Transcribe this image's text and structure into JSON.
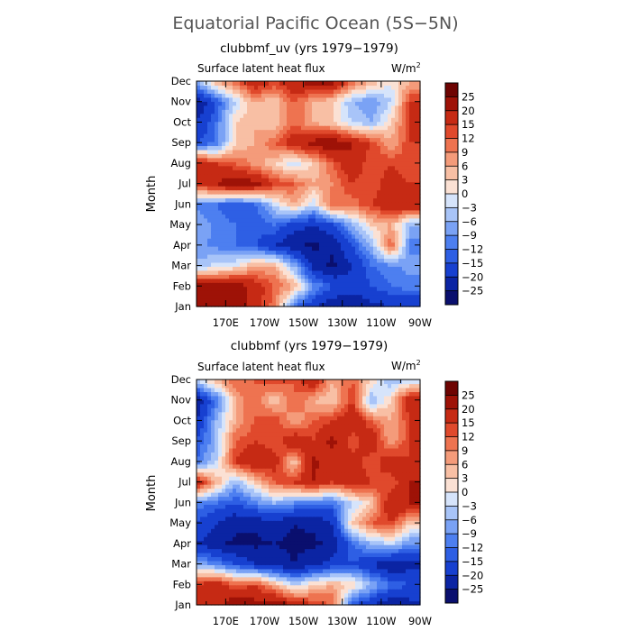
{
  "figure": {
    "title": "Equatorial Pacific Ocean (5S−5N)"
  },
  "colors": {
    "levels": [
      "-25",
      "-20",
      "-15",
      "-12",
      "-9",
      "-6",
      "-3",
      "0",
      "3",
      "6",
      "9",
      "12",
      "15",
      "20",
      "25"
    ],
    "palette": [
      "#0a0f6e",
      "#0b24a3",
      "#1740d0",
      "#2e5fe4",
      "#4d7ff0",
      "#7aa2f5",
      "#a8c4f8",
      "#d6e4fb",
      "#fbe1d4",
      "#f8bfa4",
      "#f49b7a",
      "#ee7350",
      "#e0492c",
      "#c62a14",
      "#9e1207",
      "#6e0402"
    ]
  },
  "chart_data": [
    {
      "type": "heatmap",
      "title": "clubbmf_uv (yrs 1979−1979)",
      "subtitle": "Surface latent heat flux",
      "units": "W/m",
      "units_sup": "2",
      "xlabel": "",
      "ylabel": "Month",
      "x_ticks": [
        "170E",
        "170W",
        "150W",
        "130W",
        "110W",
        "90W"
      ],
      "x_tick_lon": [
        170,
        190,
        210,
        230,
        250,
        270
      ],
      "xlim": [
        155,
        270
      ],
      "y_ticks": [
        "Jan",
        "Feb",
        "Mar",
        "Apr",
        "May",
        "Jun",
        "Jul",
        "Aug",
        "Sep",
        "Oct",
        "Nov",
        "Dec"
      ],
      "ylim": [
        1,
        12
      ],
      "x_lon": [
        155,
        165,
        175,
        185,
        195,
        205,
        215,
        225,
        235,
        245,
        255,
        265
      ],
      "values": [
        [
          25,
          20,
          22,
          18,
          10,
          -12,
          -20,
          -24,
          -25,
          -22,
          -20,
          -20
        ],
        [
          24,
          22,
          24,
          18,
          12,
          6,
          -8,
          -15,
          -18,
          -15,
          -12,
          -10
        ],
        [
          -5,
          -2,
          0,
          6,
          6,
          -6,
          -22,
          -26,
          -20,
          -12,
          -10,
          -8
        ],
        [
          -8,
          -10,
          -12,
          -14,
          -20,
          -24,
          -26,
          -24,
          -15,
          -6,
          12,
          -10
        ],
        [
          -6,
          -10,
          -12,
          -15,
          -12,
          -18,
          -20,
          -16,
          -6,
          3,
          6,
          -6
        ],
        [
          -10,
          -12,
          -15,
          -12,
          -3,
          6,
          -3,
          12,
          10,
          15,
          20,
          20
        ],
        [
          15,
          20,
          25,
          22,
          15,
          12,
          6,
          9,
          15,
          12,
          18,
          15
        ],
        [
          20,
          15,
          12,
          8,
          3,
          -3,
          3,
          12,
          20,
          12,
          15,
          12
        ],
        [
          -15,
          -12,
          3,
          6,
          12,
          18,
          22,
          25,
          20,
          15,
          6,
          15
        ],
        [
          -20,
          -12,
          3,
          6,
          3,
          12,
          6,
          3,
          -3,
          -6,
          3,
          15
        ],
        [
          -25,
          -15,
          -3,
          6,
          3,
          12,
          6,
          3,
          -6,
          -9,
          -3,
          15
        ],
        [
          -6,
          6,
          12,
          20,
          15,
          20,
          22,
          22,
          12,
          6,
          0,
          6
        ]
      ]
    },
    {
      "type": "heatmap",
      "title": "clubbmf (yrs 1979−1979)",
      "subtitle": "Surface latent heat flux",
      "units": "W/m",
      "units_sup": "2",
      "xlabel": "",
      "ylabel": "Month",
      "x_ticks": [
        "170E",
        "170W",
        "150W",
        "130W",
        "110W",
        "90W"
      ],
      "x_tick_lon": [
        170,
        190,
        210,
        230,
        250,
        270
      ],
      "xlim": [
        155,
        270
      ],
      "y_ticks": [
        "Jan",
        "Feb",
        "Mar",
        "Apr",
        "May",
        "Jun",
        "Jul",
        "Aug",
        "Sep",
        "Oct",
        "Nov",
        "Dec"
      ],
      "ylim": [
        1,
        12
      ],
      "x_lon": [
        155,
        165,
        175,
        185,
        195,
        205,
        215,
        225,
        235,
        245,
        255,
        265
      ],
      "values": [
        [
          20,
          15,
          25,
          22,
          25,
          20,
          15,
          12,
          -15,
          -20,
          -25,
          -22
        ],
        [
          15,
          20,
          12,
          15,
          6,
          -3,
          3,
          6,
          3,
          -6,
          -12,
          -15
        ],
        [
          -6,
          -10,
          -15,
          -20,
          -22,
          -25,
          -22,
          -18,
          -15,
          -20,
          -25,
          -22
        ],
        [
          -20,
          -24,
          -26,
          -26,
          -25,
          -26,
          -26,
          -24,
          -12,
          -6,
          -3,
          -9
        ],
        [
          -15,
          -20,
          -24,
          -24,
          -22,
          -25,
          -24,
          -20,
          3,
          12,
          15,
          3
        ],
        [
          -10,
          -12,
          -15,
          -10,
          -6,
          -9,
          -12,
          -12,
          -3,
          3,
          20,
          20
        ],
        [
          20,
          6,
          -6,
          3,
          12,
          15,
          20,
          15,
          18,
          15,
          12,
          20
        ],
        [
          -12,
          -3,
          15,
          20,
          18,
          3,
          22,
          15,
          18,
          12,
          20,
          15
        ],
        [
          -15,
          -6,
          12,
          15,
          12,
          20,
          15,
          22,
          12,
          20,
          6,
          15
        ],
        [
          -20,
          -6,
          6,
          12,
          15,
          6,
          12,
          15,
          20,
          12,
          6,
          15
        ],
        [
          -25,
          -12,
          6,
          12,
          3,
          12,
          6,
          3,
          15,
          -6,
          3,
          20
        ],
        [
          -3,
          6,
          12,
          12,
          15,
          12,
          20,
          6,
          12,
          3,
          -6,
          -3
        ]
      ]
    }
  ]
}
